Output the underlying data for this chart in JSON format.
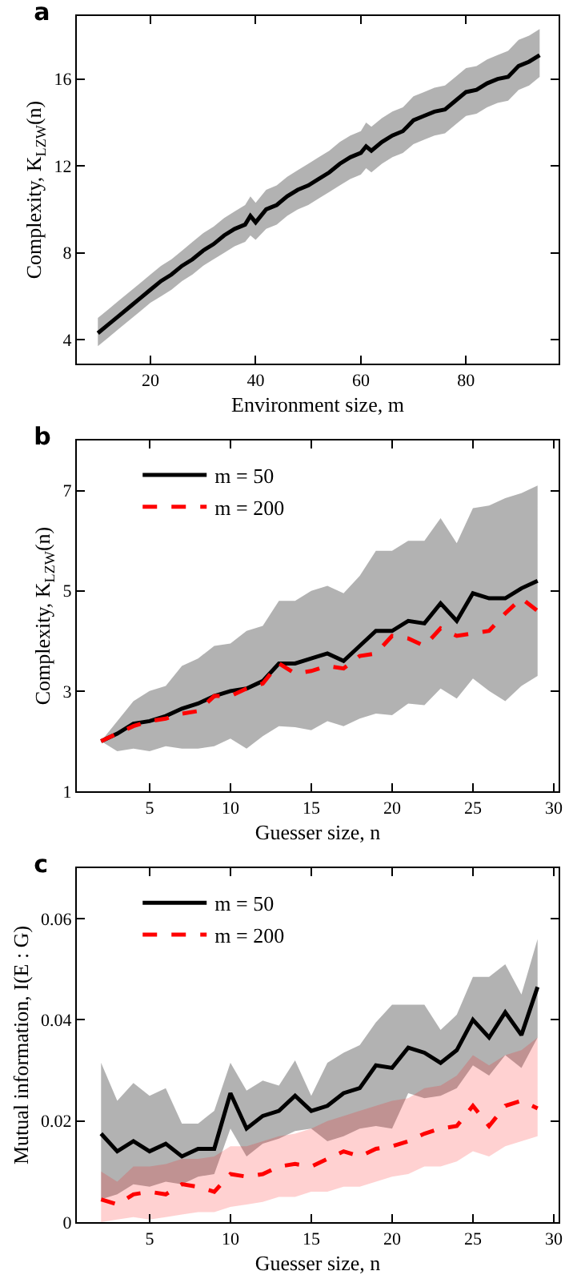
{
  "chart_data": [
    {
      "type": "line",
      "title": "a",
      "xlabel": "Environment size, m",
      "ylabel": "Complexity, K$_{LZW}$(n)",
      "xlim": [
        6,
        97.6
      ],
      "ylim": [
        2.9,
        18.9
      ],
      "xticks": [
        20,
        40,
        60,
        80
      ],
      "yticks": [
        4,
        8,
        12,
        16
      ],
      "grid": false,
      "legend": false,
      "marker": "none",
      "series": [
        {
          "color": "#000000",
          "line_style": "solid",
          "x": [
            10,
            12,
            14,
            16,
            18,
            20,
            22,
            24,
            26,
            28,
            30,
            32,
            34,
            36,
            38,
            39,
            40,
            42,
            44,
            46,
            48,
            50,
            52,
            54,
            56,
            58,
            60,
            61,
            62,
            64,
            66,
            68,
            70,
            72,
            74,
            76,
            78,
            80,
            82,
            84,
            86,
            88,
            90,
            92,
            94
          ],
          "values": [
            4.3,
            4.7,
            5.1,
            5.5,
            5.9,
            6.3,
            6.7,
            7.0,
            7.4,
            7.7,
            8.1,
            8.4,
            8.8,
            9.1,
            9.3,
            9.7,
            9.4,
            10.0,
            10.2,
            10.6,
            10.9,
            11.1,
            11.4,
            11.7,
            12.1,
            12.4,
            12.6,
            12.9,
            12.7,
            13.1,
            13.4,
            13.6,
            14.1,
            14.3,
            14.5,
            14.6,
            15.0,
            15.4,
            15.5,
            15.8,
            16.0,
            16.1,
            16.6,
            16.8,
            17.1
          ],
          "lower": [
            3.7,
            4.1,
            4.5,
            4.9,
            5.3,
            5.7,
            6.0,
            6.3,
            6.7,
            7.0,
            7.4,
            7.7,
            8.0,
            8.3,
            8.5,
            8.8,
            8.6,
            9.1,
            9.3,
            9.7,
            10.0,
            10.2,
            10.5,
            10.8,
            11.1,
            11.4,
            11.6,
            11.9,
            11.7,
            12.1,
            12.4,
            12.6,
            13.0,
            13.2,
            13.4,
            13.5,
            13.9,
            14.3,
            14.4,
            14.7,
            14.9,
            15.0,
            15.5,
            15.7,
            16.1
          ],
          "upper": [
            5.0,
            5.4,
            5.8,
            6.2,
            6.6,
            7.0,
            7.4,
            7.7,
            8.1,
            8.5,
            8.9,
            9.2,
            9.6,
            9.9,
            10.2,
            10.6,
            10.3,
            10.9,
            11.1,
            11.5,
            11.8,
            12.1,
            12.4,
            12.7,
            13.1,
            13.4,
            13.6,
            14.0,
            13.8,
            14.2,
            14.5,
            14.7,
            15.2,
            15.4,
            15.6,
            15.7,
            16.1,
            16.5,
            16.6,
            16.9,
            17.1,
            17.3,
            17.8,
            18.0,
            18.3
          ]
        }
      ]
    },
    {
      "type": "line",
      "title": "b",
      "xlabel": "Guesser size, n",
      "ylabel": "Complexity, K$_{LZW}$(n)",
      "xlim": [
        0.5,
        30.3
      ],
      "ylim": [
        1,
        8
      ],
      "xticks": [
        5,
        10,
        15,
        20,
        25,
        30
      ],
      "yticks": [
        1,
        3,
        5,
        7
      ],
      "grid": false,
      "legend": "top left",
      "marker": "none",
      "x": [
        2,
        3,
        4,
        5,
        6,
        7,
        8,
        9,
        10,
        11,
        12,
        13,
        14,
        15,
        16,
        17,
        18,
        19,
        20,
        21,
        22,
        23,
        24,
        25,
        26,
        27,
        28,
        29
      ],
      "series": [
        {
          "name": "m = 50",
          "color": "#000000",
          "line_style": "solid",
          "values": [
            2.0,
            2.15,
            2.35,
            2.4,
            2.5,
            2.65,
            2.75,
            2.9,
            3.0,
            3.05,
            3.2,
            3.55,
            3.55,
            3.65,
            3.75,
            3.6,
            3.9,
            4.2,
            4.2,
            4.4,
            4.35,
            4.75,
            4.4,
            4.95,
            4.85,
            4.85,
            5.05,
            5.2
          ],
          "lower": [
            2.0,
            1.8,
            1.85,
            1.8,
            1.9,
            1.85,
            1.85,
            1.9,
            2.05,
            1.85,
            2.1,
            2.3,
            2.28,
            2.22,
            2.4,
            2.3,
            2.45,
            2.55,
            2.52,
            2.75,
            2.72,
            3.05,
            2.85,
            3.25,
            3.0,
            2.8,
            3.1,
            3.3
          ],
          "upper": [
            2.0,
            2.4,
            2.8,
            3.0,
            3.1,
            3.5,
            3.65,
            3.9,
            3.95,
            4.2,
            4.3,
            4.8,
            4.8,
            5.0,
            5.1,
            4.95,
            5.3,
            5.8,
            5.8,
            6.0,
            6.0,
            6.45,
            5.95,
            6.65,
            6.7,
            6.85,
            6.95,
            7.1
          ]
        },
        {
          "name": "m = 200",
          "color": "#ff0000",
          "line_style": "dashed",
          "values": [
            2.0,
            2.15,
            2.3,
            2.4,
            2.45,
            2.55,
            2.6,
            2.9,
            2.9,
            3.05,
            3.15,
            3.55,
            3.35,
            3.4,
            3.5,
            3.45,
            3.7,
            3.75,
            4.1,
            4.05,
            3.9,
            4.25,
            4.1,
            4.15,
            4.2,
            4.55,
            4.85,
            4.6
          ]
        }
      ]
    },
    {
      "type": "line",
      "title": "c",
      "xlabel": "Guesser size, n",
      "ylabel": "Mutual information, I(E : G)",
      "xlim": [
        0.5,
        30.3
      ],
      "ylim": [
        0,
        0.07
      ],
      "xticks": [
        5,
        10,
        15,
        20,
        25,
        30
      ],
      "yticks": [
        0,
        0.02,
        0.04,
        0.06
      ],
      "grid": false,
      "legend": "top left",
      "marker": "none",
      "x": [
        2,
        3,
        4,
        5,
        6,
        7,
        8,
        9,
        10,
        11,
        12,
        13,
        14,
        15,
        16,
        17,
        18,
        19,
        20,
        21,
        22,
        23,
        24,
        25,
        26,
        27,
        28,
        29
      ],
      "series": [
        {
          "name": "m = 50",
          "color": "#000000",
          "line_style": "solid",
          "values": [
            0.0175,
            0.014,
            0.016,
            0.014,
            0.0155,
            0.013,
            0.0145,
            0.0145,
            0.0255,
            0.0185,
            0.021,
            0.022,
            0.025,
            0.022,
            0.023,
            0.0255,
            0.0265,
            0.031,
            0.0305,
            0.0345,
            0.0335,
            0.0315,
            0.034,
            0.04,
            0.0365,
            0.0415,
            0.037,
            0.0465
          ],
          "lower": [
            0.0045,
            0.0055,
            0.0075,
            0.007,
            0.008,
            0.0075,
            0.009,
            0.0095,
            0.0185,
            0.013,
            0.0155,
            0.0165,
            0.018,
            0.0185,
            0.016,
            0.017,
            0.0185,
            0.019,
            0.0185,
            0.0255,
            0.0245,
            0.025,
            0.0265,
            0.031,
            0.029,
            0.033,
            0.0305,
            0.0365
          ],
          "upper": [
            0.0315,
            0.024,
            0.0275,
            0.025,
            0.0265,
            0.0195,
            0.0195,
            0.022,
            0.0315,
            0.026,
            0.028,
            0.027,
            0.032,
            0.025,
            0.0315,
            0.0335,
            0.035,
            0.0395,
            0.043,
            0.043,
            0.043,
            0.038,
            0.041,
            0.0485,
            0.0485,
            0.051,
            0.045,
            0.056
          ]
        },
        {
          "name": "m = 200",
          "color": "#ff0000",
          "line_style": "dashed",
          "values": [
            0.0045,
            0.0035,
            0.0055,
            0.006,
            0.0055,
            0.0075,
            0.007,
            0.006,
            0.0095,
            0.009,
            0.0095,
            0.011,
            0.0115,
            0.011,
            0.0125,
            0.014,
            0.013,
            0.0145,
            0.015,
            0.016,
            0.0175,
            0.0185,
            0.019,
            0.023,
            0.019,
            0.023,
            0.024,
            0.0225
          ],
          "lower": [
            0.0,
            0.0005,
            0.001,
            0.0005,
            0.001,
            0.0015,
            0.002,
            0.002,
            0.003,
            0.0035,
            0.004,
            0.005,
            0.005,
            0.006,
            0.006,
            0.007,
            0.007,
            0.008,
            0.009,
            0.0095,
            0.011,
            0.011,
            0.012,
            0.014,
            0.013,
            0.015,
            0.016,
            0.017
          ],
          "upper": [
            0.01,
            0.008,
            0.011,
            0.011,
            0.0115,
            0.0125,
            0.0125,
            0.013,
            0.015,
            0.015,
            0.016,
            0.017,
            0.0175,
            0.0185,
            0.02,
            0.021,
            0.022,
            0.023,
            0.024,
            0.0245,
            0.0265,
            0.027,
            0.029,
            0.033,
            0.031,
            0.033,
            0.034,
            0.0365
          ]
        }
      ]
    }
  ]
}
